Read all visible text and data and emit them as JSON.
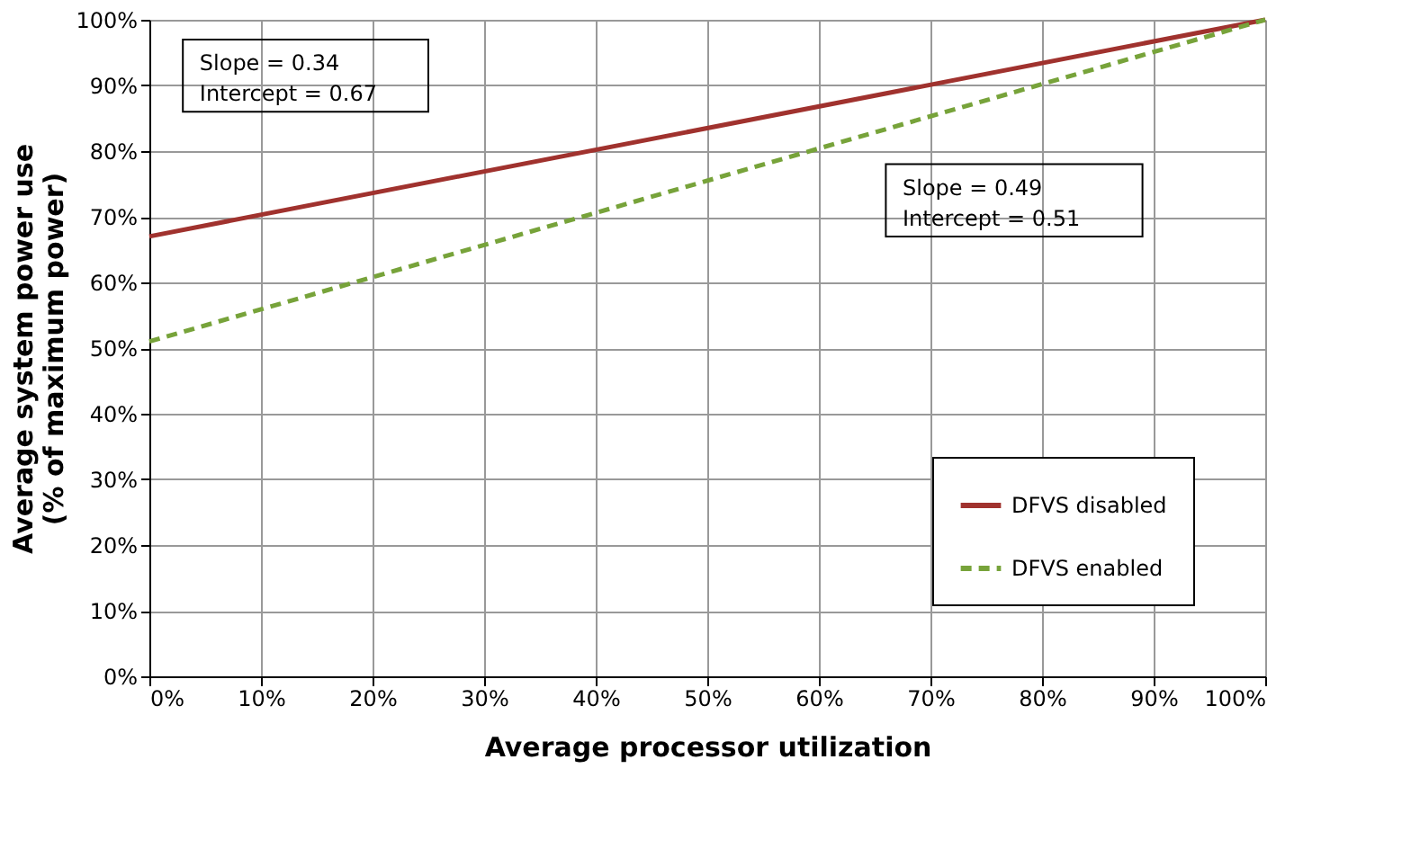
{
  "chart_data": {
    "type": "line",
    "xlabel": "Average processor utilization",
    "ylabel": "Average system power use\n(% of maximum power)",
    "x": [
      0,
      100
    ],
    "xlim": [
      0,
      100
    ],
    "ylim": [
      0,
      100
    ],
    "xticks": [
      {
        "value": 0,
        "label": "0%"
      },
      {
        "value": 10,
        "label": "10%"
      },
      {
        "value": 20,
        "label": "20%"
      },
      {
        "value": 30,
        "label": "30%"
      },
      {
        "value": 40,
        "label": "40%"
      },
      {
        "value": 50,
        "label": "50%"
      },
      {
        "value": 60,
        "label": "60%"
      },
      {
        "value": 70,
        "label": "70%"
      },
      {
        "value": 80,
        "label": "80%"
      },
      {
        "value": 90,
        "label": "90%"
      },
      {
        "value": 100,
        "label": "100%"
      }
    ],
    "yticks": [
      {
        "value": 0,
        "label": "0%"
      },
      {
        "value": 10,
        "label": "10%"
      },
      {
        "value": 20,
        "label": "20%"
      },
      {
        "value": 30,
        "label": "30%"
      },
      {
        "value": 40,
        "label": "40%"
      },
      {
        "value": 50,
        "label": "50%"
      },
      {
        "value": 60,
        "label": "60%"
      },
      {
        "value": 70,
        "label": "70%"
      },
      {
        "value": 80,
        "label": "80%"
      },
      {
        "value": 90,
        "label": "90%"
      },
      {
        "value": 100,
        "label": "100%"
      }
    ],
    "series": [
      {
        "name": "DFVS disabled",
        "color": "#a0322e",
        "values": [
          67,
          100
        ],
        "line_style": "solid"
      },
      {
        "name": "DFVS enabled",
        "color": "#77a33a",
        "values": [
          51,
          100
        ],
        "line_style": "dashed"
      }
    ],
    "annotations": [
      "Slope = 0.34\nIntercept = 0.67",
      "Slope = 0.49\nIntercept = 0.51"
    ],
    "grid": true,
    "legend": "bottom right",
    "marker": "none"
  }
}
